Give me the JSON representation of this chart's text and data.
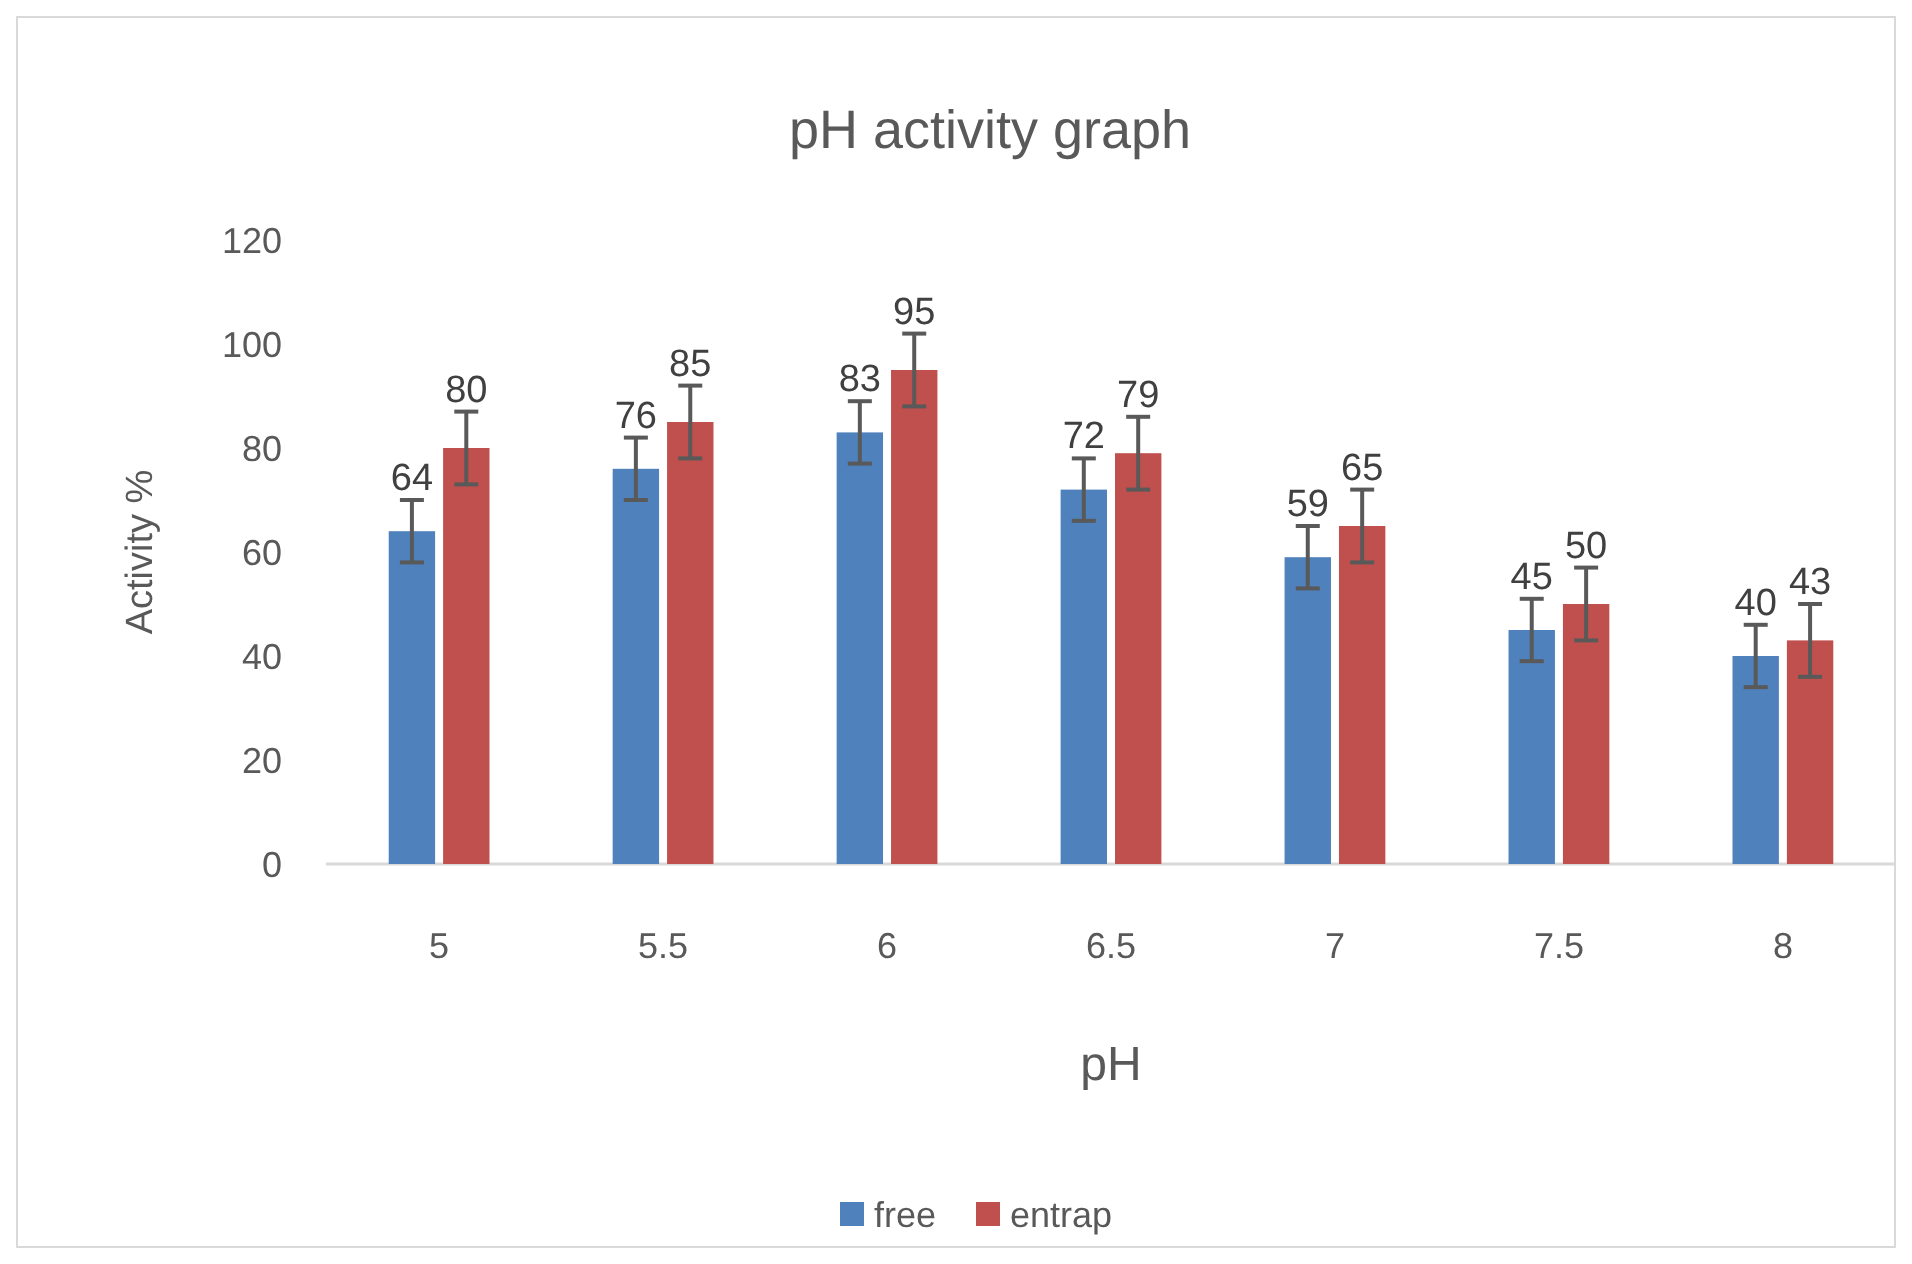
{
  "chart_data": {
    "type": "bar",
    "title": "pH activity graph",
    "xlabel": "pH",
    "ylabel": "Activity %",
    "categories": [
      "5",
      "5.5",
      "6",
      "6.5",
      "7",
      "7.5",
      "8"
    ],
    "series": [
      {
        "name": "free",
        "color": "#4f81bd",
        "values": [
          64,
          76,
          83,
          72,
          59,
          45,
          40
        ],
        "errors": [
          6,
          6,
          6,
          6,
          6,
          6,
          6
        ]
      },
      {
        "name": "entrap",
        "color": "#c0504d",
        "values": [
          80,
          85,
          95,
          79,
          65,
          50,
          43
        ],
        "errors": [
          7,
          7,
          7,
          7,
          7,
          7,
          7
        ]
      }
    ],
    "ylim": [
      0,
      120
    ],
    "yticks": [
      0,
      20,
      40,
      60,
      80,
      100,
      120
    ],
    "grid": false,
    "legend": "bottom",
    "data_labels": true
  }
}
